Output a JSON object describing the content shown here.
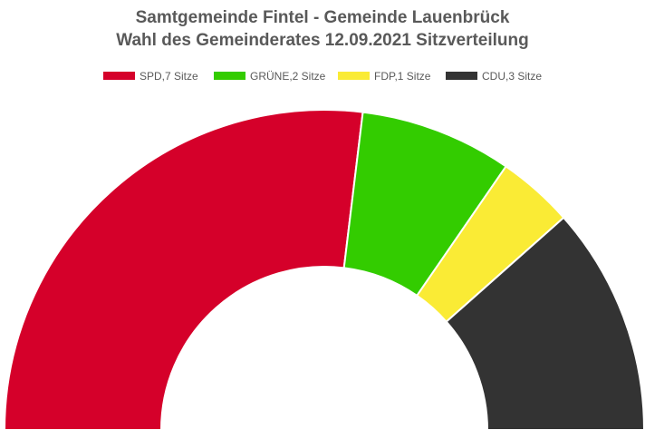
{
  "chart_data": {
    "type": "pie",
    "variant": "half-donut",
    "title": "Samtgemeinde Fintel - Gemeinde Lauenbrück",
    "subtitle": "Wahl des Gemeinderates 12.09.2021 Sitzverteilung",
    "unit": "Sitze",
    "legend_position": "top",
    "categories": [
      "SPD",
      "GRÜNE",
      "FDP",
      "CDU"
    ],
    "values": [
      7,
      2,
      1,
      3
    ],
    "legend_labels": [
      "SPD,7 Sitze",
      "GRÜNE,2 Sitze",
      "FDP,1 Sitze",
      "CDU,3 Sitze"
    ],
    "colors": [
      "#d5002a",
      "#33cc00",
      "#faeb35",
      "#333333"
    ]
  }
}
